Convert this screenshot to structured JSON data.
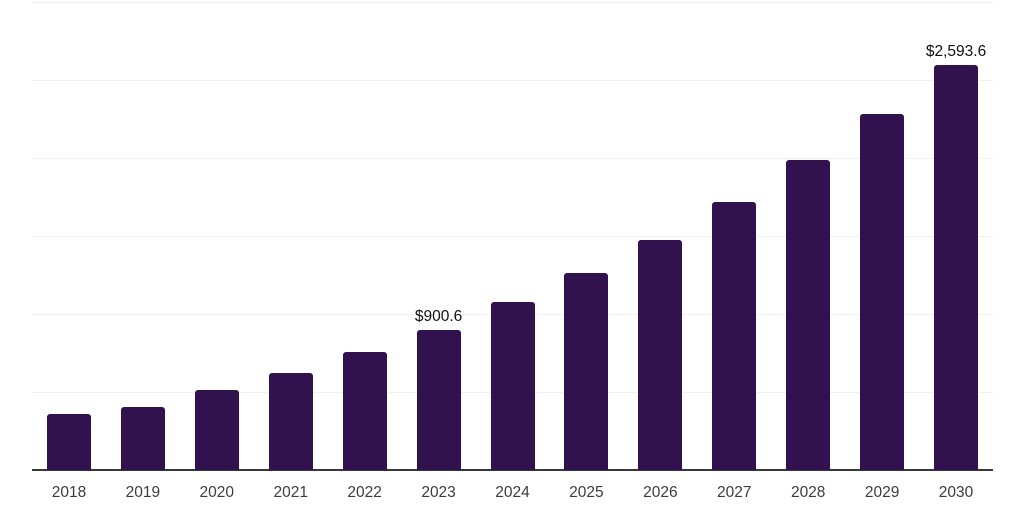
{
  "chart_data": {
    "type": "bar",
    "title": "",
    "xlabel": "",
    "ylabel": "",
    "categories": [
      "2018",
      "2019",
      "2020",
      "2021",
      "2022",
      "2023",
      "2024",
      "2025",
      "2026",
      "2027",
      "2028",
      "2029",
      "2030"
    ],
    "values": [
      359,
      404,
      510,
      625,
      757,
      900.6,
      1075,
      1261,
      1474,
      1717,
      1985,
      2281,
      2593.6
    ],
    "data_labels": [
      "",
      "",
      "",
      "",
      "",
      "$900.6",
      "",
      "",
      "",
      "",
      "",
      "",
      "$2,593.6"
    ],
    "ylim": [
      0,
      3000
    ],
    "grid_step": 500,
    "grid": true,
    "legend_position": "none",
    "colors": {
      "bar": "#32124e",
      "axis_line": "#38383b",
      "gridline": "#f0f0f0",
      "tick_label": "#3c3c3c",
      "data_label": "#111111",
      "background": "#ffffff"
    }
  }
}
